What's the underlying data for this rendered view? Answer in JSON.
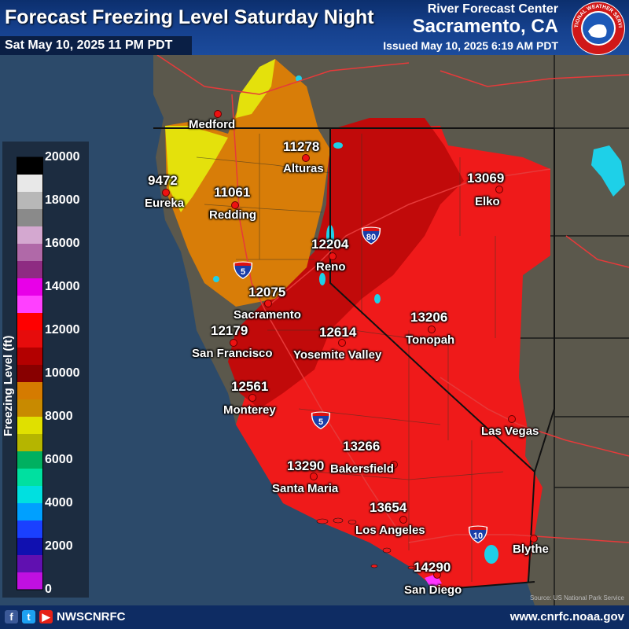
{
  "header": {
    "title": "Forecast Freezing Level Saturday Night",
    "valid_time": "Sat May 10, 2025 11 PM PDT",
    "org_line": "River Forecast Center",
    "office": "Sacramento, CA",
    "issued": "Issued May 10, 2025 6:19 AM PDT",
    "logo_text": "NATIONAL WEATHER SERVICE"
  },
  "legend": {
    "title": "Freezing Level (ft)",
    "ticks": [
      "20000",
      "18000",
      "16000",
      "14000",
      "12000",
      "10000",
      "8000",
      "6000",
      "4000",
      "2000",
      "0"
    ],
    "colors": [
      "#000000",
      "#e8e8e8",
      "#b8b8b8",
      "#8a8a8a",
      "#d4a8d0",
      "#b069a8",
      "#8e2b82",
      "#e800e8",
      "#ff40ff",
      "#ff0000",
      "#e60c0c",
      "#b30000",
      "#880000",
      "#d57b00",
      "#c88a00",
      "#e0e000",
      "#b5b500",
      "#00b060",
      "#00e0a0",
      "#00e0e0",
      "#00a0ff",
      "#1a40ff",
      "#1010b0",
      "#6010b0",
      "#c010e0"
    ]
  },
  "cities": [
    {
      "name": "Medford",
      "value": ""
    },
    {
      "name": "Alturas",
      "value": "11278"
    },
    {
      "name": "Eureka",
      "value": "9472"
    },
    {
      "name": "Redding",
      "value": "11061"
    },
    {
      "name": "Elko",
      "value": "13069"
    },
    {
      "name": "Reno",
      "value": "12204"
    },
    {
      "name": "Sacramento",
      "value": "12075"
    },
    {
      "name": "San Francisco",
      "value": "12179"
    },
    {
      "name": "Yosemite Valley",
      "value": "12614"
    },
    {
      "name": "Tonopah",
      "value": "13206"
    },
    {
      "name": "Monterey",
      "value": "12561"
    },
    {
      "name": "Las Vegas",
      "value": ""
    },
    {
      "name": "Bakersfield",
      "value": "13266"
    },
    {
      "name": "Santa Maria",
      "value": "13290"
    },
    {
      "name": "Los Angeles",
      "value": "13654"
    },
    {
      "name": "Blythe",
      "value": ""
    },
    {
      "name": "San Diego",
      "value": "14290"
    }
  ],
  "highways": [
    "5",
    "80",
    "5",
    "10"
  ],
  "footer": {
    "handle": "NWSCNRFC",
    "website": "www.cnrfc.noaa.gov",
    "credit": "Source: US National Park Service"
  }
}
